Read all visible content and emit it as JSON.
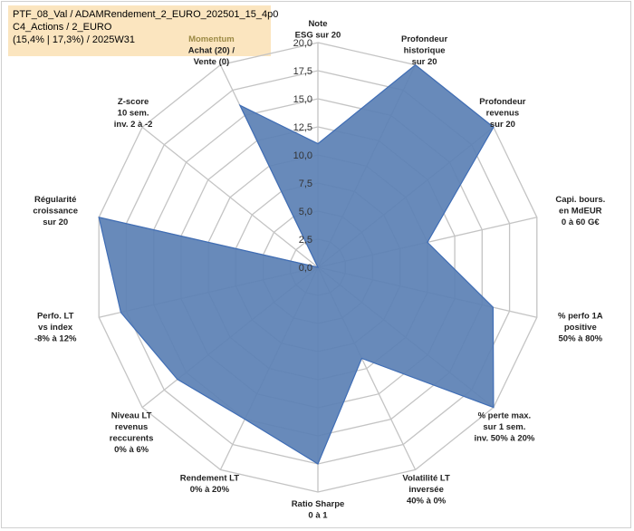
{
  "header": {
    "line1": "PTF_08_Val / ADAMRendement_2_EURO_202501_15_4p0",
    "line2": "C4_Actions / 2_EURO",
    "line3": "(15,4% | 17,3%) / 2025W31"
  },
  "colors": {
    "fill": "#5b80b4",
    "stroke": "#3f6db5",
    "grid": "#c4c4c4",
    "title_bg": "#fbe5bf",
    "highlight_label": "#9c8a45"
  },
  "chart_data": {
    "type": "radar",
    "title": "",
    "rmin": 0,
    "rmax": 20,
    "tick_step": 2.5,
    "tick_labels": [
      "0,0",
      "2,5",
      "5,0",
      "7,5",
      "10,0",
      "12,5",
      "15,0",
      "17,5",
      "20,0"
    ],
    "grid": true,
    "axes": [
      {
        "label": [
          "Note",
          "ESG sur 20"
        ],
        "value": 11.0
      },
      {
        "label": [
          "Profondeur",
          "historique",
          "sur 20"
        ],
        "value": 20.0
      },
      {
        "label": [
          "Profondeur",
          "revenus",
          "sur 20"
        ],
        "value": 20.0
      },
      {
        "label": [
          "Capi. bours.",
          "en MdEUR",
          "0 à 60 G€"
        ],
        "value": 10.0
      },
      {
        "label": [
          "% perfo 1A",
          "positive",
          "50% à 80%"
        ],
        "value": 16.0
      },
      {
        "label": [
          "% perte max.",
          "sur 1 sem.",
          "inv. 50% à 20%"
        ],
        "value": 20.0
      },
      {
        "label": [
          "Volatilité LT",
          "inversée",
          "40% à 0%"
        ],
        "value": 9.0
      },
      {
        "label": [
          "Ratio Sharpe",
          "0 à 1"
        ],
        "value": 17.5
      },
      {
        "label": [
          "Rendement LT",
          "0% à 20%"
        ],
        "value": 15.0
      },
      {
        "label": [
          "Niveau LT",
          "revenus",
          "reccurents",
          "0% à 6%"
        ],
        "value": 16.0
      },
      {
        "label": [
          "Perfo. LT",
          "vs index",
          "-8% à 12%"
        ],
        "value": 18.0
      },
      {
        "label": [
          "Régularité",
          "croissance",
          "sur 20"
        ],
        "value": 20.0
      },
      {
        "label": [
          "Z-score",
          "10 sem.",
          "inv. 2 à -2"
        ],
        "value": 0.0
      },
      {
        "label": [
          "Momentum",
          "Achat (20) /",
          "Vente (0)"
        ],
        "value": 16.0,
        "first_line_highlight": true
      }
    ]
  }
}
